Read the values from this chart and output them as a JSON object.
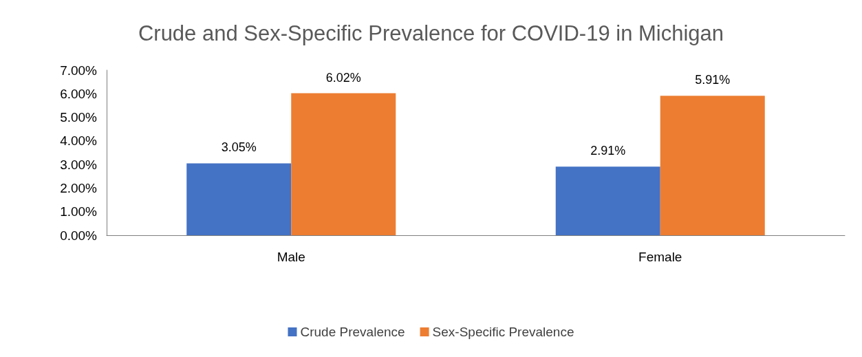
{
  "chart_data": {
    "type": "bar",
    "title": "Crude and Sex-Specific Prevalence for COVID-19 in Michigan",
    "categories": [
      "Male",
      "Female"
    ],
    "series": [
      {
        "name": "Crude Prevalence",
        "color": "#4472c4",
        "values": [
          3.05,
          2.91
        ],
        "value_labels": [
          "3.05%",
          "2.91%"
        ]
      },
      {
        "name": "Sex-Specific Prevalence",
        "color": "#ed7d31",
        "values": [
          6.02,
          5.91
        ],
        "value_labels": [
          "6.02%",
          "5.91%"
        ]
      }
    ],
    "ylim": [
      0,
      7
    ],
    "yticks": [
      {
        "value": 0,
        "label": "0.00%"
      },
      {
        "value": 1,
        "label": "1.00%"
      },
      {
        "value": 2,
        "label": "2.00%"
      },
      {
        "value": 3,
        "label": "3.00%"
      },
      {
        "value": 4,
        "label": "4.00%"
      },
      {
        "value": 5,
        "label": "5.00%"
      },
      {
        "value": 6,
        "label": "6.00%"
      },
      {
        "value": 7,
        "label": "7.00%"
      }
    ],
    "grid": false,
    "legend": "bottom"
  }
}
